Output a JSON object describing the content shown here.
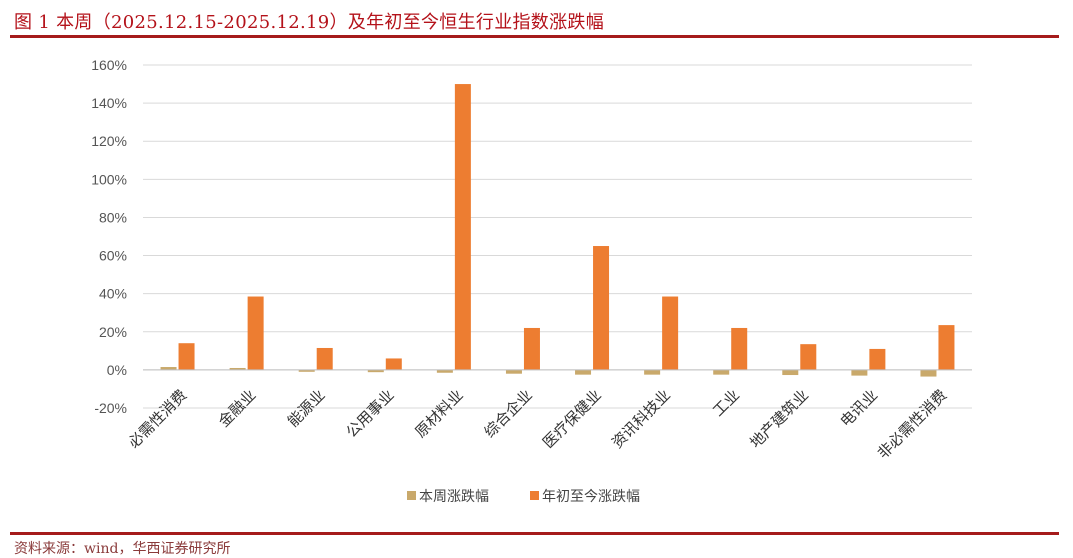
{
  "figure": {
    "title": "图 1   本周（2025.12.15-2025.12.19）及年初至今恒生行业指数涨跌幅",
    "source": "资料来源：wind，华西证券研究所"
  },
  "colors": {
    "weekly": "#c9a96b",
    "ytd": "#ed7d31",
    "rule": "#a51b1b",
    "title": "#b4121a",
    "grid": "#d9d9d9"
  },
  "chart_data": {
    "type": "bar",
    "categories": [
      "必需性消费",
      "金融业",
      "能源业",
      "公用事业",
      "原材料业",
      "综合企业",
      "医疗保健业",
      "资讯科技业",
      "工业",
      "地产建筑业",
      "电讯业",
      "非必需性消费"
    ],
    "series": [
      {
        "name": "本周涨跌幅",
        "values": [
          1.5,
          1.0,
          -1.0,
          -1.2,
          -1.5,
          -2.0,
          -2.5,
          -2.5,
          -2.5,
          -2.7,
          -3.0,
          -3.5
        ]
      },
      {
        "name": "年初至今涨跌幅",
        "values": [
          14,
          38.5,
          11.5,
          6,
          150,
          22,
          65,
          38.5,
          22,
          13.5,
          11,
          23.5
        ]
      }
    ],
    "y_ticks": [
      "160%",
      "140%",
      "120%",
      "100%",
      "80%",
      "60%",
      "40%",
      "20%",
      "0%",
      "-20%"
    ],
    "ylim": [
      -20,
      160
    ],
    "y_unit": "%",
    "grid": true,
    "legend_position": "bottom"
  }
}
